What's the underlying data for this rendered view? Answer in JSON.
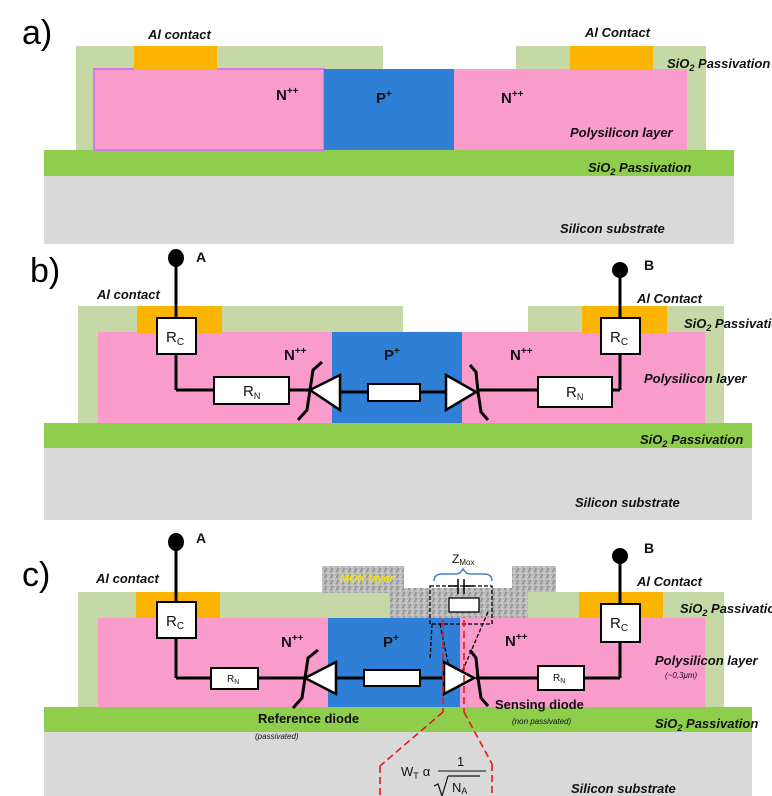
{
  "panels": {
    "a": {
      "label": "a)",
      "al_contact_left": "Al contact",
      "al_contact_right": "Al Contact",
      "sio2_top_right": "SiO",
      "sio2_top_sub": "2",
      "sio2_top_suffix": " Passivation",
      "n_left": "N",
      "n_left_sup": "++",
      "p_center": "P",
      "p_center_sup": "+",
      "n_right": "N",
      "n_right_sup": "++",
      "polysilicon": "Polysilicon layer",
      "sio2_bottom": "SiO",
      "sio2_bottom_sub": "2",
      "sio2_bottom_suffix": " Passivation",
      "substrate": "Silicon substrate"
    },
    "b": {
      "label": "b)",
      "terminal_a": "A",
      "terminal_b": "B",
      "al_contact_left": "Al contact",
      "al_contact_right": "Al Contact",
      "sio2_top_right": "SiO",
      "sio2_top_sub": "2",
      "sio2_top_suffix": " Passivation",
      "rc_main": "R",
      "rc_sub": "C",
      "rn_main": "R",
      "rn_sub": "N",
      "n_left": "N",
      "n_left_sup": "++",
      "p_center": "P",
      "p_center_sup": "+",
      "n_right": "N",
      "n_right_sup": "++",
      "polysilicon": "Polysilicon layer",
      "sio2_bottom": "SiO",
      "sio2_bottom_sub": "2",
      "sio2_bottom_suffix": " Passivation",
      "substrate": "Silicon substrate"
    },
    "c": {
      "label": "c)",
      "terminal_a": "A",
      "terminal_b": "B",
      "al_contact_left": "Al contact",
      "al_contact_right": "Al Contact",
      "mox_layer": "MOX layer",
      "zmox_main": "Z",
      "zmox_sub": "Mox",
      "sio2_top_right": "SiO",
      "sio2_top_sub": "2",
      "sio2_top_suffix": " Passivation",
      "rc_main": "R",
      "rc_sub": "C",
      "rn_main": "R",
      "rn_sub": "N",
      "n_left": "N",
      "n_left_sup": "++",
      "p_center": "P",
      "p_center_sup": "+",
      "n_right": "N",
      "n_right_sup": "++",
      "polysilicon": "Polysilicon layer",
      "polysilicon_thickness": "(~0,3μm)",
      "reference_diode": "Reference diode",
      "reference_diode_note": "(passivated)",
      "sensing_diode": "Sensing diode",
      "sensing_diode_note": "(non passivated)",
      "sio2_bottom": "SiO",
      "sio2_bottom_sub": "2",
      "sio2_bottom_suffix": " Passivation",
      "substrate": "Silicon substrate",
      "formula_lhs": "W",
      "formula_lhs_sub": "T",
      "formula_alpha": "α",
      "formula_num": "1",
      "formula_den": "N",
      "formula_den_sub": "A"
    }
  },
  "colors": {
    "substrate": "#d9d9d9",
    "sio2_base": "#8ece4c",
    "sio2_passivation": "#c5d8a5",
    "n_region": "#f99bcb",
    "p_region": "#2f7fd6",
    "al_contact": "#fbb400",
    "mox": "#b0b0b0",
    "formula_lines": "#e31a1c"
  }
}
